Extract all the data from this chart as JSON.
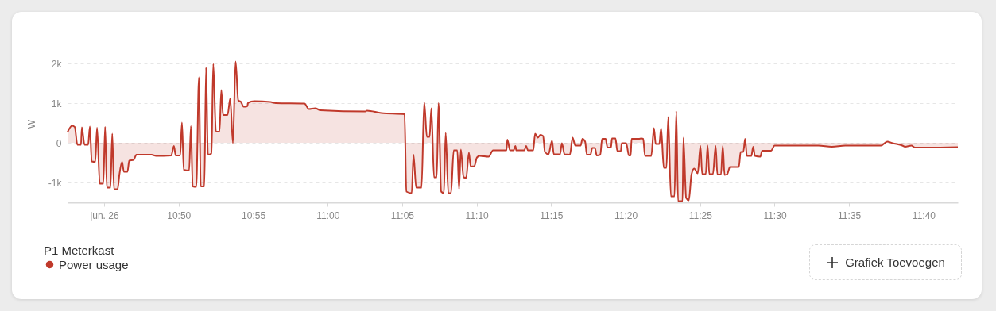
{
  "chart_data": {
    "type": "area",
    "ylabel": "W",
    "legend_title": "P1 Meterkast",
    "legend": "bottom left",
    "grid": "y",
    "annotations": [
      "Grafiek Toevoegen"
    ],
    "xlim": [
      10.709,
      11.705
    ],
    "xticks": [
      {
        "value": 10.75,
        "label": "jun. 26"
      },
      {
        "value": 10.8333,
        "label": "10:50"
      },
      {
        "value": 10.9167,
        "label": "10:55"
      },
      {
        "value": 11,
        "label": "11:00"
      },
      {
        "value": 11.0833,
        "label": "11:05"
      },
      {
        "value": 11.1667,
        "label": "11:10"
      },
      {
        "value": 11.25,
        "label": "11:15"
      },
      {
        "value": 11.3333,
        "label": "11:20"
      },
      {
        "value": 11.4167,
        "label": "11:25"
      },
      {
        "value": 11.5,
        "label": "11:30"
      },
      {
        "value": 11.5833,
        "label": "11:35"
      },
      {
        "value": 11.6667,
        "label": "11:40"
      }
    ],
    "ylim": [
      -1500,
      2460
    ],
    "yticks": [
      {
        "value": -1000,
        "label": "-1k"
      },
      0,
      {
        "value": 1000,
        "label": "1k"
      },
      {
        "value": 2000,
        "label": "2k"
      }
    ],
    "x": [
      10.709,
      10.714,
      10.717,
      10.72,
      10.724,
      10.725,
      10.728,
      10.732,
      10.734,
      10.736,
      10.74,
      10.742,
      10.745,
      10.749,
      10.751,
      10.753,
      10.757,
      10.759,
      10.761,
      10.765,
      10.767,
      10.77,
      10.772,
      10.776,
      10.778,
      10.783,
      10.786,
      10.803,
      10.808,
      10.825,
      10.828,
      10.83,
      10.835,
      10.837,
      10.839,
      10.845,
      10.847,
      10.849,
      10.853,
      10.856,
      10.858,
      10.862,
      10.864,
      10.866,
      10.87,
      10.872,
      10.875,
      10.879,
      10.881,
      10.883,
      10.888,
      10.891,
      10.894,
      10.897,
      10.9,
      10.903,
      10.906,
      10.91,
      10.911,
      10.918,
      10.936,
      10.942,
      10.974,
      10.979,
      10.986,
      10.992,
      11.042,
      11.044,
      11.06,
      11.086,
      11.088,
      11.094,
      11.096,
      11.099,
      11.105,
      11.108,
      11.111,
      11.114,
      11.116,
      11.119,
      11.122,
      11.124,
      11.127,
      11.13,
      11.132,
      11.135,
      11.138,
      11.141,
      11.145,
      11.147,
      11.149,
      11.152,
      11.155,
      11.158,
      11.16,
      11.164,
      11.167,
      11.17,
      11.18,
      11.185,
      11.2,
      11.201,
      11.204,
      11.208,
      11.21,
      11.211,
      11.22,
      11.222,
      11.224,
      11.23,
      11.232,
      11.235,
      11.238,
      11.241,
      11.243,
      11.247,
      11.251,
      11.253,
      11.26,
      11.262,
      11.265,
      11.271,
      11.274,
      11.277,
      11.283,
      11.285,
      11.288,
      11.29,
      11.294,
      11.296,
      11.299,
      11.301,
      11.305,
      11.307,
      11.311,
      11.313,
      11.317,
      11.318,
      11.322,
      11.324,
      11.328,
      11.329,
      11.334,
      11.337,
      11.339,
      11.34,
      11.348,
      11.351,
      11.353,
      11.355,
      11.362,
      11.365,
      11.367,
      11.371,
      11.373,
      11.376,
      11.379,
      11.381,
      11.384,
      11.388,
      11.39,
      11.392,
      11.397,
      11.398,
      11.401,
      11.404,
      11.407,
      11.41,
      11.414,
      11.417,
      11.419,
      11.423,
      11.425,
      11.427,
      11.431,
      11.434,
      11.436,
      11.44,
      11.442,
      11.444,
      11.447,
      11.45,
      11.46,
      11.462,
      11.465,
      11.467,
      11.469,
      11.474,
      11.476,
      11.478,
      11.484,
      11.486,
      11.496,
      11.5,
      11.531,
      11.549,
      11.564,
      11.579,
      11.619,
      11.626,
      11.632,
      11.643,
      11.646,
      11.653,
      11.657,
      11.671,
      11.705
    ],
    "series": [
      {
        "name": "Power usage",
        "color": "#c0392b",
        "values": [
          270,
          430,
          400,
          -50,
          -50,
          390,
          -50,
          -50,
          410,
          -470,
          -480,
          380,
          -1030,
          -1030,
          400,
          -1130,
          -1130,
          230,
          -1170,
          -1170,
          -800,
          -480,
          -730,
          -730,
          -450,
          -430,
          -300,
          -300,
          -330,
          -320,
          -80,
          -320,
          -320,
          510,
          -680,
          -700,
          420,
          -1100,
          -1110,
          1650,
          -1100,
          -1100,
          1900,
          -300,
          -270,
          1990,
          280,
          280,
          1330,
          700,
          700,
          1120,
          -10,
          2050,
          1070,
          1030,
          910,
          920,
          1010,
          1050,
          1030,
          1000,
          990,
          850,
          870,
          820,
          790,
          810,
          750,
          720,
          -1230,
          -1270,
          -300,
          -1130,
          -1130,
          1030,
          150,
          150,
          870,
          -870,
          -870,
          1000,
          -1230,
          -1270,
          250,
          -1270,
          -1270,
          -190,
          -190,
          -1170,
          -170,
          -870,
          -880,
          -250,
          -600,
          -590,
          -370,
          -330,
          -350,
          -190,
          -190,
          80,
          -190,
          -190,
          -80,
          -190,
          -190,
          -80,
          -190,
          -190,
          230,
          130,
          200,
          170,
          -230,
          -290,
          50,
          -290,
          -290,
          -10,
          -290,
          -300,
          130,
          -70,
          -70,
          100,
          30,
          -300,
          -300,
          -130,
          -130,
          -320,
          -300,
          100,
          100,
          -120,
          -120,
          110,
          110,
          -210,
          -210,
          -10,
          -10,
          -320,
          -320,
          100,
          100,
          110,
          100,
          -330,
          -330,
          370,
          -30,
          -30,
          370,
          -630,
          -630,
          650,
          -1350,
          -1350,
          800,
          -1470,
          -1470,
          130,
          -1390,
          -1450,
          -800,
          -650,
          -770,
          -80,
          -790,
          -790,
          -70,
          -790,
          -790,
          -80,
          -800,
          -800,
          -80,
          -810,
          -790,
          -610,
          -610,
          -230,
          -230,
          100,
          -330,
          -330,
          -100,
          -330,
          -350,
          -200,
          -200,
          -70,
          -70,
          -70,
          -100,
          -70,
          -70,
          30,
          -10,
          -70,
          -100,
          -70,
          -120,
          -120,
          -110
        ]
      }
    ]
  }
}
